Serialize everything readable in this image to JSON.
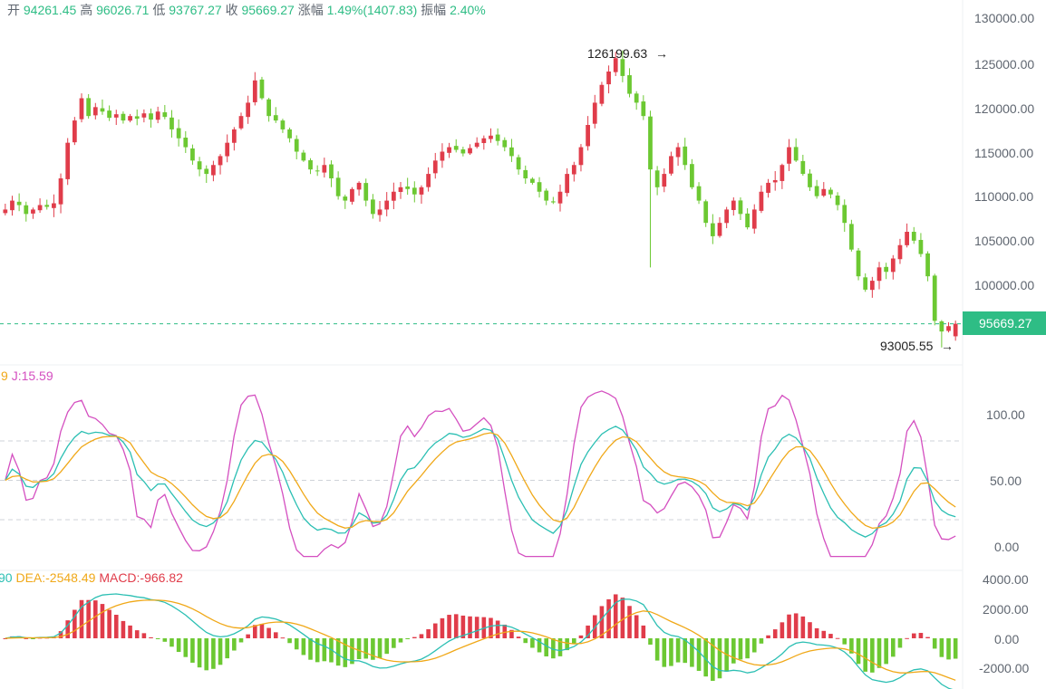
{
  "header": {
    "items": [
      {
        "label": "开",
        "value": "94261.45"
      },
      {
        "label": "高",
        "value": "96026.71"
      },
      {
        "label": "低",
        "value": "93767.27"
      },
      {
        "label": "收",
        "value": "95669.27"
      },
      {
        "label": "涨幅",
        "value": "1.49%(1407.83)"
      },
      {
        "label": "振幅",
        "value": "2.40%"
      }
    ],
    "label_color": "#5f6670",
    "value_color": "#2ebd85"
  },
  "kdj": {
    "partial_label": "9",
    "j_label": "J:15.59",
    "k_color": "#2bbfb3",
    "d_color": "#f0a818",
    "j_color": "#d44fc0"
  },
  "macd": {
    "partial_label": "90",
    "dea_label": "DEA:-2548.49",
    "macd_label": "MACD:-966.82",
    "dif_color": "#2bbfb3",
    "dea_color": "#f0a818",
    "macd_color": "#e03c4a"
  },
  "price_axis": {
    "ticks": [
      "130000.00",
      "125000.00",
      "120000.00",
      "115000.00",
      "110000.00",
      "105000.00",
      "100000.00"
    ],
    "current_price_label": "95669.27",
    "current_price_color": "#2ebd85",
    "high_marker": "126199.63",
    "low_marker": "93005.55"
  },
  "kdj_axis": {
    "ticks": [
      "100.00",
      "50.00",
      "0.00"
    ]
  },
  "macd_axis": {
    "ticks": [
      "4000.00",
      "2000.00",
      "0.00",
      "-2000.00"
    ]
  },
  "chart_data": {
    "type": "candlestick",
    "up_color": "#e03c4a",
    "down_color": "#6cc832",
    "price_range": [
      93005.55,
      126199.63
    ],
    "ylim_price": [
      92000,
      131000
    ],
    "current_price": 95669.27,
    "last_candle": {
      "open": 94261.45,
      "high": 96026.71,
      "low": 93767.27,
      "close": 95669.27
    },
    "close_approx": [
      108500,
      109500,
      109000,
      108000,
      108500,
      109000,
      108800,
      109200,
      112000,
      116000,
      118500,
      121000,
      119000,
      120000,
      119500,
      118800,
      119200,
      118500,
      119000,
      118700,
      119300,
      118600,
      119500,
      118900,
      117500,
      116500,
      115500,
      114000,
      113000,
      112500,
      113500,
      114500,
      116000,
      117500,
      119000,
      120500,
      123000,
      121000,
      119000,
      118500,
      117500,
      116500,
      115000,
      114000,
      113000,
      112800,
      113500,
      112000,
      110000,
      109500,
      110800,
      111500,
      109500,
      108000,
      108500,
      109500,
      110500,
      111000,
      110800,
      110200,
      111000,
      112500,
      114000,
      115000,
      115500,
      115200,
      114800,
      115400,
      116000,
      116500,
      116800,
      116200,
      115500,
      114500,
      113000,
      112000,
      111500,
      110500,
      109500,
      109300,
      110500,
      112500,
      113500,
      115500,
      118000,
      120500,
      122500,
      124000,
      125500,
      123500,
      121500,
      120500,
      119000,
      113000,
      111000,
      112500,
      114500,
      115500,
      113500,
      111000,
      109500,
      107000,
      105500,
      107000,
      108500,
      109500,
      108000,
      106500,
      108500,
      110500,
      111500,
      111800,
      113500,
      115500,
      114000,
      112500,
      111000,
      110000,
      110800,
      110200,
      109000,
      107000,
      104000,
      101000,
      99500,
      100500,
      102000,
      101500,
      103000,
      104500,
      106000,
      105000,
      103500,
      101000,
      96000,
      94800,
      95400,
      95669.27
    ],
    "kdj": {
      "j_range_seen": [
        -5,
        115
      ],
      "guide_levels": [
        20,
        50,
        80
      ],
      "last_j": 15.59
    },
    "macd": {
      "dea_last": -2548.49,
      "macd_last": -966.82,
      "ylim": [
        -3400,
        4600
      ]
    }
  }
}
